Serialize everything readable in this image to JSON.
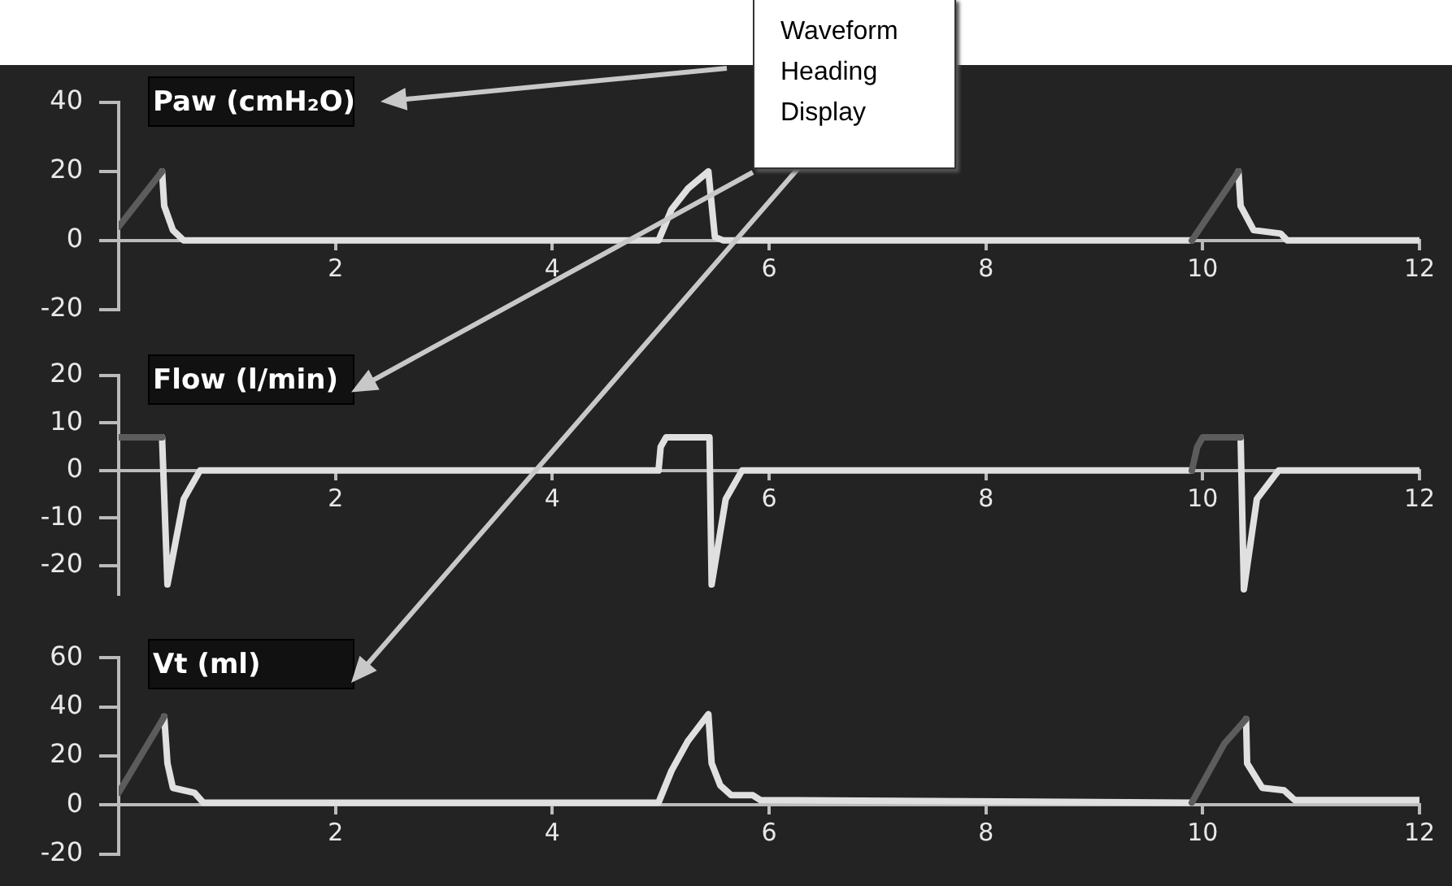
{
  "chart_data": [
    {
      "type": "line",
      "title": "Paw (cmH₂O)",
      "annotations": [
        "Waveform Heading Display"
      ],
      "xlim": [
        0,
        12
      ],
      "xticks": [
        2,
        4,
        6,
        8,
        10,
        12
      ],
      "ylim": [
        -20,
        40
      ],
      "yticks": [
        -20,
        0,
        20,
        40
      ],
      "grid": false,
      "legend": false,
      "marker": "none",
      "line_style": "solid",
      "series": [
        {
          "color": "#5c5c5c",
          "x": [
            0,
            0.4,
            5,
            9.9,
            10.33
          ],
          "values": [
            4,
            20,
            null,
            0,
            20
          ]
        },
        {
          "color": "#e0e0e0",
          "x": [
            0.4,
            0.42,
            0.5,
            0.6,
            4.98,
            5.1,
            5.25,
            5.44,
            5.5,
            5.58,
            9.9,
            10.1,
            10.33,
            10.35,
            10.47,
            10.72,
            10.78,
            12
          ],
          "values": [
            20,
            10,
            3,
            0,
            0,
            9,
            15,
            20,
            1,
            0,
            0,
            null,
            20,
            10,
            3,
            2,
            0,
            0
          ]
        }
      ]
    },
    {
      "type": "line",
      "title": "Flow (l/min)",
      "xlim": [
        0,
        12
      ],
      "xticks": [
        2,
        4,
        6,
        8,
        10,
        12
      ],
      "ylim": [
        -26,
        20
      ],
      "yticks": [
        -20,
        -10,
        0,
        10,
        20
      ],
      "grid": false,
      "legend": false,
      "marker": "none",
      "line_style": "solid",
      "series": [
        {
          "color": "#5c5c5c",
          "x": [
            0,
            0.4,
            5,
            9.9,
            9.95,
            10.0,
            10.35
          ],
          "values": [
            7,
            7,
            null,
            0,
            5,
            7,
            7
          ]
        },
        {
          "color": "#e0e0e0",
          "x": [
            0.4,
            0.45,
            0.6,
            0.7,
            0.75,
            4.98,
            5.0,
            5.05,
            5.45,
            5.47,
            5.6,
            5.75,
            9.9,
            10.1,
            10.35,
            10.38,
            10.5,
            10.7,
            12
          ],
          "values": [
            7,
            -24,
            -6,
            -2,
            0,
            0,
            5,
            7,
            7,
            -24,
            -6,
            0,
            0,
            null,
            7,
            -25,
            -6,
            0,
            0
          ]
        }
      ]
    },
    {
      "type": "line",
      "title": "Vt (ml)",
      "xlim": [
        0,
        12
      ],
      "xticks": [
        2,
        4,
        6,
        8,
        10,
        12
      ],
      "ylim": [
        -20,
        60
      ],
      "yticks": [
        -20,
        0,
        20,
        40,
        60
      ],
      "grid": false,
      "legend": false,
      "marker": "none",
      "line_style": "solid",
      "series": [
        {
          "color": "#5c5c5c",
          "x": [
            0,
            0.42,
            5,
            9.9,
            10.2,
            10.4
          ],
          "values": [
            5,
            36,
            null,
            1,
            25,
            35
          ]
        },
        {
          "color": "#e0e0e0",
          "x": [
            0.42,
            0.45,
            0.5,
            0.7,
            0.78,
            4.98,
            5.1,
            5.25,
            5.44,
            5.47,
            5.55,
            5.65,
            5.85,
            5.92,
            9.9,
            10.1,
            10.4,
            10.41,
            10.55,
            10.75,
            10.85,
            12
          ],
          "values": [
            36,
            17,
            7,
            5,
            1,
            1,
            14,
            26,
            37,
            17,
            8,
            4,
            4,
            2,
            1,
            null,
            35,
            17,
            7,
            6,
            2,
            2
          ]
        }
      ]
    }
  ]
}
